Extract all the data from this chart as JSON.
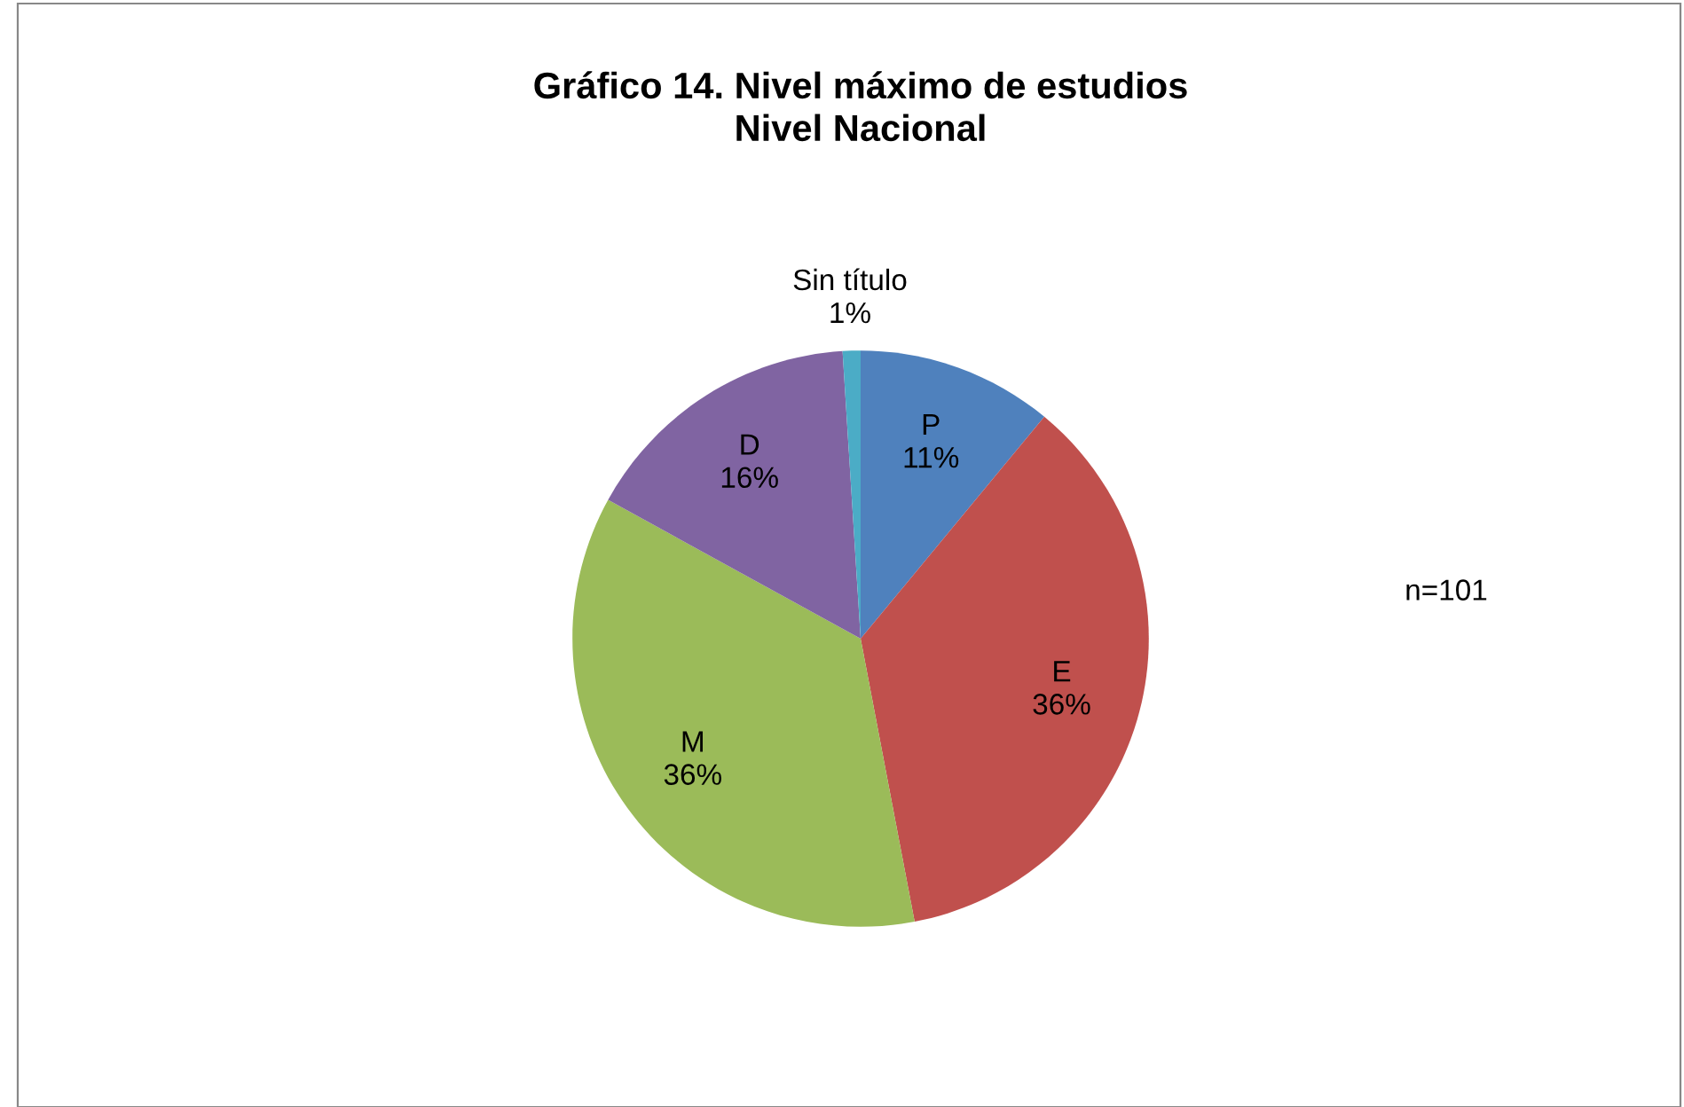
{
  "chart_data": {
    "type": "pie",
    "title": "Gráfico 14. Nivel máximo de estudios\nNivel Nacional",
    "categories": [
      "P",
      "E",
      "M",
      "D",
      "Sin título"
    ],
    "values": [
      11,
      36,
      36,
      16,
      1
    ],
    "value_labels": [
      "11%",
      "36%",
      "36%",
      "16%",
      "1%"
    ],
    "colors": [
      "#4f81bd",
      "#c0504d",
      "#9bbb59",
      "#8064a2",
      "#4bacc6"
    ],
    "annotations": [
      "n=101"
    ],
    "legend": false
  }
}
